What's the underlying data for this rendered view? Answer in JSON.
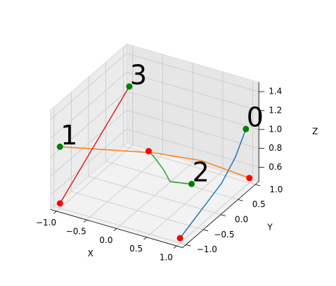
{
  "chart_data": {
    "type": "line3d",
    "x_label": "X",
    "y_label": "Y",
    "z_label": "Z",
    "xlim": [
      -1.1,
      1.1
    ],
    "ylim": [
      -1.1,
      1.1
    ],
    "zlim": [
      0.45,
      1.5
    ],
    "xticks": [
      {
        "value": -1,
        "label": "−1.0"
      },
      {
        "value": -0.5,
        "label": "−0.5"
      },
      {
        "value": 0,
        "label": "0.0"
      },
      {
        "value": 0.5,
        "label": "0.5"
      },
      {
        "value": 1,
        "label": "1.0"
      }
    ],
    "yticks": [
      {
        "value": -1,
        "label": "−1.0"
      },
      {
        "value": -0.5,
        "label": "−0.5"
      },
      {
        "value": 0,
        "label": "0.0"
      },
      {
        "value": 0.5,
        "label": "0.5"
      },
      {
        "value": 1,
        "label": "1.0"
      }
    ],
    "zticks": [
      0.6,
      0.8,
      {
        "value": 1,
        "label": "1.0"
      },
      1.2,
      1.4
    ],
    "grid": true,
    "start_color": "#008000",
    "end_color": "#ff0000",
    "series": [
      {
        "name": "0",
        "color": "#1f77b4",
        "x": [
          1,
          1,
          1,
          1,
          1
        ],
        "y": [
          0.9,
          0.6,
          0.2,
          -0.4,
          -1
        ],
        "z": [
          1.05,
          0.85,
          0.7,
          0.6,
          0.5
        ]
      },
      {
        "name": "1",
        "color": "#ff7f0e",
        "x": [
          -1,
          -0.5,
          0,
          0.5,
          1
        ],
        "y": [
          -1,
          -0.5,
          0,
          0.5,
          1
        ],
        "z": [
          1.1,
          1.0,
          0.9,
          0.75,
          0.5
        ]
      },
      {
        "name": "2",
        "color": "#2ca02c",
        "x": [
          0.5,
          0.2,
          0.1,
          0,
          -0.1
        ],
        "y": [
          0.2,
          0.1,
          0.1,
          0,
          0
        ],
        "z": [
          0.6,
          0.6,
          0.7,
          0.85,
          0.9
        ]
      },
      {
        "name": "3",
        "color": "#d62728",
        "x": [
          -1,
          -1,
          -1,
          -1
        ],
        "y": [
          1,
          0.5,
          0,
          -1
        ],
        "z": [
          1.1,
          0.95,
          0.8,
          0.5
        ]
      }
    ]
  }
}
